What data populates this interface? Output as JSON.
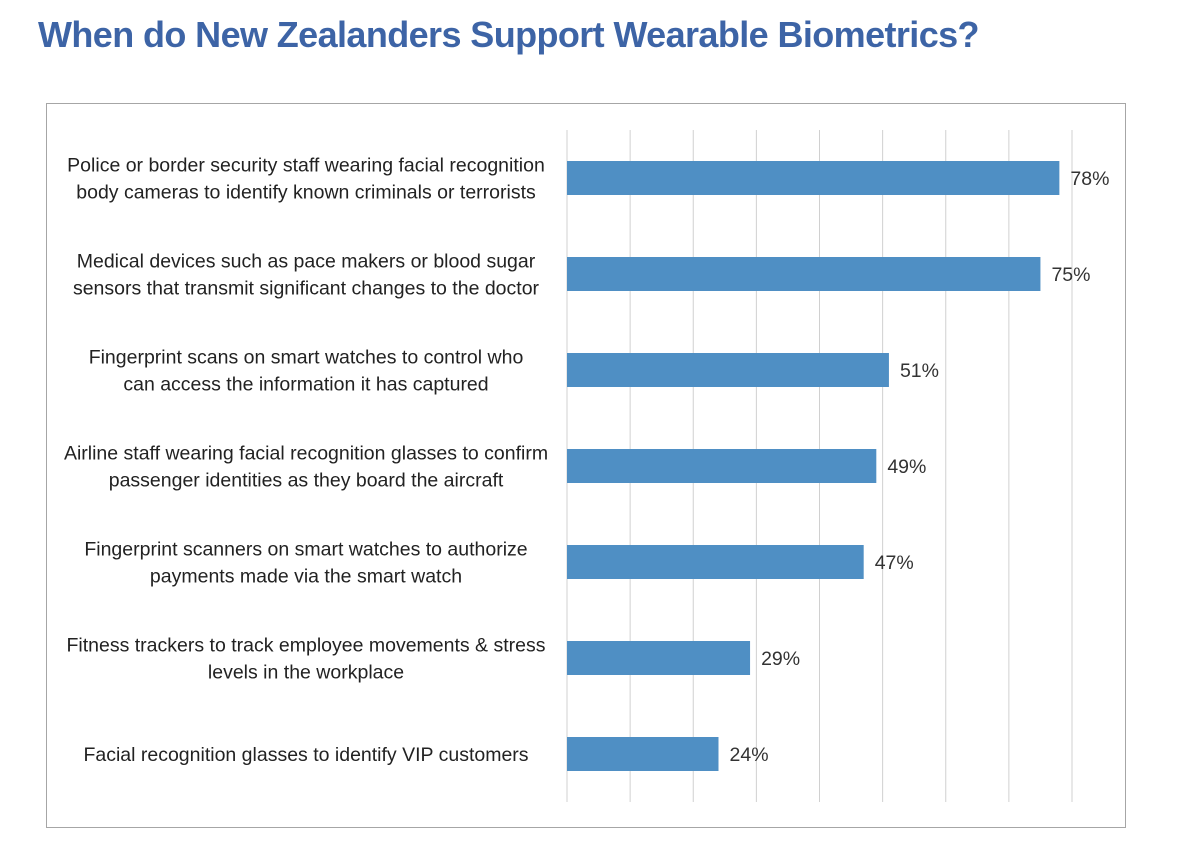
{
  "title": "When do New Zealanders Support Wearable Biometrics?",
  "colors": {
    "title": "#3d64a6",
    "bar": "#4f8fc4",
    "grid": "#d0d0d0",
    "frame": "#a6a6a6"
  },
  "chart_data": {
    "type": "bar",
    "orientation": "horizontal",
    "title": "When do New Zealanders Support Wearable Biometrics?",
    "xlabel": "",
    "ylabel": "",
    "xlim": [
      0,
      80
    ],
    "grid": true,
    "legend": "none",
    "categories": [
      [
        "Police or border security staff wearing facial recognition",
        "body cameras to identify known criminals or terrorists"
      ],
      [
        "Medical devices such as pace makers or blood sugar",
        "sensors that transmit significant changes to the doctor"
      ],
      [
        "Fingerprint scans on smart watches to control who",
        "can access the information it has captured"
      ],
      [
        "Airline staff wearing facial recognition glasses to confirm",
        "passenger identities as they board the aircraft"
      ],
      [
        "Fingerprint scanners on smart watches to authorize",
        "payments made via the smart watch"
      ],
      [
        "Fitness trackers to track employee movements & stress",
        "levels in the workplace"
      ],
      [
        "Facial recognition glasses to identify VIP customers"
      ]
    ],
    "values": [
      78,
      75,
      51,
      49,
      47,
      29,
      24
    ],
    "data_labels": [
      "78%",
      "75%",
      "51%",
      "49%",
      "47%",
      "29%",
      "24%"
    ]
  }
}
